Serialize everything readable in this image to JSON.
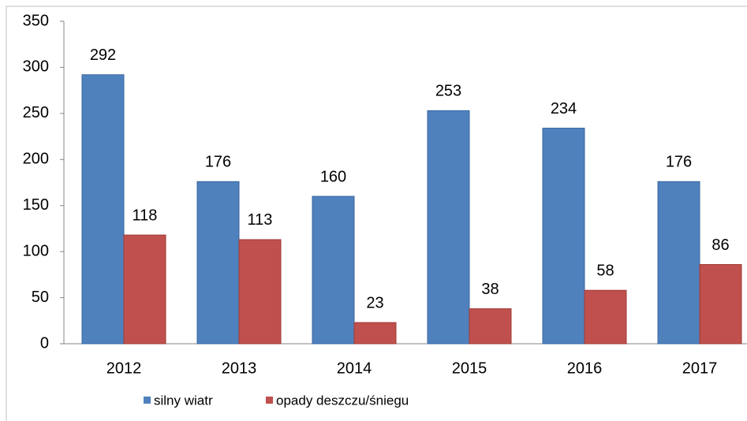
{
  "chart_data": {
    "type": "bar",
    "categories": [
      "2012",
      "2013",
      "2014",
      "2015",
      "2016",
      "2017"
    ],
    "series": [
      {
        "name": "silny wiatr",
        "color": "#4f81bd",
        "values": [
          292,
          176,
          160,
          253,
          234,
          176
        ]
      },
      {
        "name": "opady deszczu/śniegu",
        "color": "#c0504d",
        "values": [
          118,
          113,
          23,
          38,
          58,
          86
        ]
      }
    ],
    "ylim": [
      0,
      350
    ],
    "yticks": [
      0,
      50,
      100,
      150,
      200,
      250,
      300,
      350
    ],
    "grid": false,
    "legend": "bottom"
  }
}
